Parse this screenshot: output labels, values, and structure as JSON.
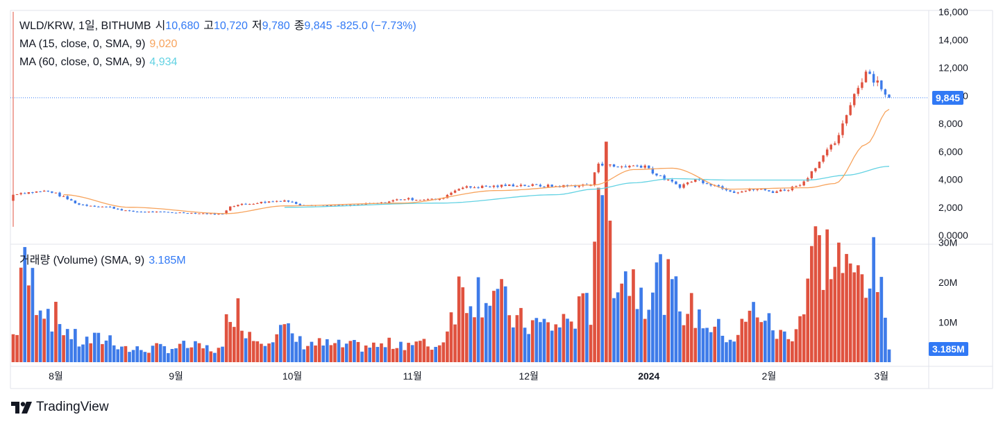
{
  "header": {
    "symbol": "WLD/KRW, 1일, BITHUMB",
    "open_label": "시",
    "open_value": "10,680",
    "high_label": "고",
    "high_value": "10,720",
    "low_label": "저",
    "low_value": "9,780",
    "close_label": "종",
    "close_value": "9,845",
    "change_value": "-825.0 (−7.73%)"
  },
  "indicators": {
    "ma15_label": "MA (15, close, 0, SMA, 9)",
    "ma15_value": "9,020",
    "ma60_label": "MA (60, close, 0, SMA, 9)",
    "ma60_value": "4,934",
    "volume_label": "거래량 (Volume) (SMA, 9)",
    "volume_value": "3.185M"
  },
  "price_badge": "9,845",
  "volume_badge": "3.185M",
  "brand": {
    "name": "TradingView"
  },
  "colors": {
    "up": "#e0523f",
    "down": "#3e7be9",
    "accent": "#3179f5",
    "ma15": "#f7a35c",
    "ma60": "#62d2e3"
  },
  "chart_data": {
    "type": "candlestick",
    "price_axis": {
      "ticks": [
        "16,000",
        "14,000",
        "12,000",
        "10,000",
        "8,000",
        "6,000",
        "4,000",
        "2,000",
        "0.0000"
      ],
      "tick_values": [
        16000,
        14000,
        12000,
        10000,
        8000,
        6000,
        4000,
        2000,
        0
      ],
      "ylim": [
        0,
        16000
      ]
    },
    "volume_axis": {
      "ticks": [
        "30M",
        "20M",
        "10M"
      ],
      "tick_values": [
        30,
        20,
        10
      ],
      "unit": "M",
      "ylim": [
        0,
        30
      ]
    },
    "x_ticks": [
      {
        "label": "8월",
        "index": 11
      },
      {
        "label": "9월",
        "index": 42
      },
      {
        "label": "10월",
        "index": 72
      },
      {
        "label": "11월",
        "index": 103
      },
      {
        "label": "12월",
        "index": 133
      },
      {
        "label": "2024",
        "index": 164
      },
      {
        "label": "2월",
        "index": 195
      },
      {
        "label": "3월",
        "index": 224
      }
    ],
    "segments": [
      [
        0,
        2900,
        0,
        4
      ],
      [
        1,
        3000,
        25
      ],
      [
        8,
        3150,
        15
      ],
      [
        10,
        3100,
        12
      ],
      [
        17,
        2200,
        5
      ],
      [
        25,
        2000,
        6
      ],
      [
        30,
        1700,
        3
      ],
      [
        45,
        1600,
        4
      ],
      [
        54,
        1500,
        3
      ],
      [
        56,
        2100,
        16
      ],
      [
        62,
        2300,
        6
      ],
      [
        70,
        2500,
        8
      ],
      [
        74,
        2200,
        5
      ],
      [
        85,
        2100,
        4
      ],
      [
        95,
        2300,
        4
      ],
      [
        100,
        2600,
        5
      ],
      [
        110,
        2550,
        4
      ],
      [
        115,
        3400,
        18
      ],
      [
        124,
        3500,
        18
      ],
      [
        130,
        3600,
        10
      ],
      [
        140,
        3500,
        9
      ],
      [
        149,
        3600,
        14
      ],
      [
        151,
        5200,
        55
      ],
      [
        155,
        4900,
        25
      ],
      [
        163,
        5000,
        18
      ],
      [
        166,
        4300,
        22
      ],
      [
        172,
        3500,
        15
      ],
      [
        176,
        4000,
        12
      ],
      [
        182,
        3500,
        8
      ],
      [
        186,
        3100,
        6
      ],
      [
        192,
        3300,
        14
      ],
      [
        196,
        3100,
        8
      ],
      [
        200,
        3300,
        6
      ],
      [
        204,
        3800,
        14
      ],
      [
        206,
        4600,
        28
      ],
      [
        213,
        7000,
        26
      ],
      [
        216,
        9500,
        20
      ],
      [
        220,
        11800,
        24
      ],
      [
        223,
        11000,
        22
      ],
      [
        226,
        9845,
        3.185
      ]
    ],
    "ma15_anchors": [
      [
        13,
        2900
      ],
      [
        30,
        2000
      ],
      [
        55,
        1550
      ],
      [
        70,
        2100
      ],
      [
        100,
        2300
      ],
      [
        125,
        3200
      ],
      [
        150,
        3600
      ],
      [
        160,
        4700
      ],
      [
        170,
        4800
      ],
      [
        185,
        3300
      ],
      [
        205,
        3400
      ],
      [
        212,
        3700
      ],
      [
        220,
        6500
      ],
      [
        226,
        9020
      ]
    ],
    "ma60_anchors": [
      [
        70,
        2000
      ],
      [
        110,
        2300
      ],
      [
        140,
        2900
      ],
      [
        150,
        3300
      ],
      [
        160,
        3750
      ],
      [
        170,
        4050
      ],
      [
        185,
        3950
      ],
      [
        205,
        3950
      ],
      [
        215,
        4300
      ],
      [
        226,
        4934
      ]
    ]
  }
}
